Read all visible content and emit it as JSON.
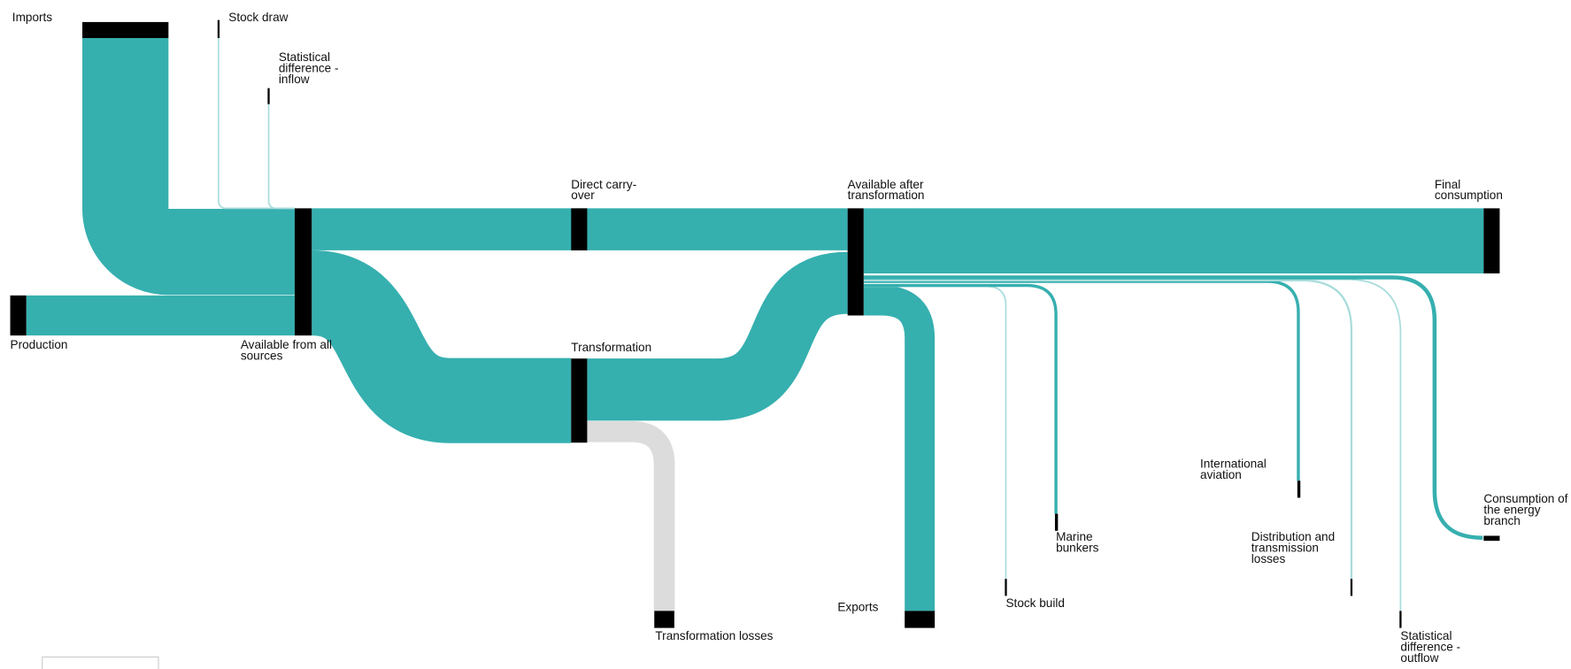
{
  "nodes": [
    {
      "label": "Imports"
    },
    {
      "label": "Stock draw"
    },
    {
      "label": "Statistical difference - inflow"
    },
    {
      "label": "Production"
    },
    {
      "label": "Available from all sources"
    },
    {
      "label": "Direct carry-over"
    },
    {
      "label": "Transformation"
    },
    {
      "label": "Available after transformation"
    },
    {
      "label": "Final consumption"
    },
    {
      "label": "Transformation losses"
    },
    {
      "label": "Exports"
    },
    {
      "label": "Stock build"
    },
    {
      "label": "Marine bunkers"
    },
    {
      "label": "International aviation"
    },
    {
      "label": "Distribution and transmission losses"
    },
    {
      "label": "Statistical difference - outflow"
    },
    {
      "label": "Consumption of the energy branch"
    }
  ]
}
